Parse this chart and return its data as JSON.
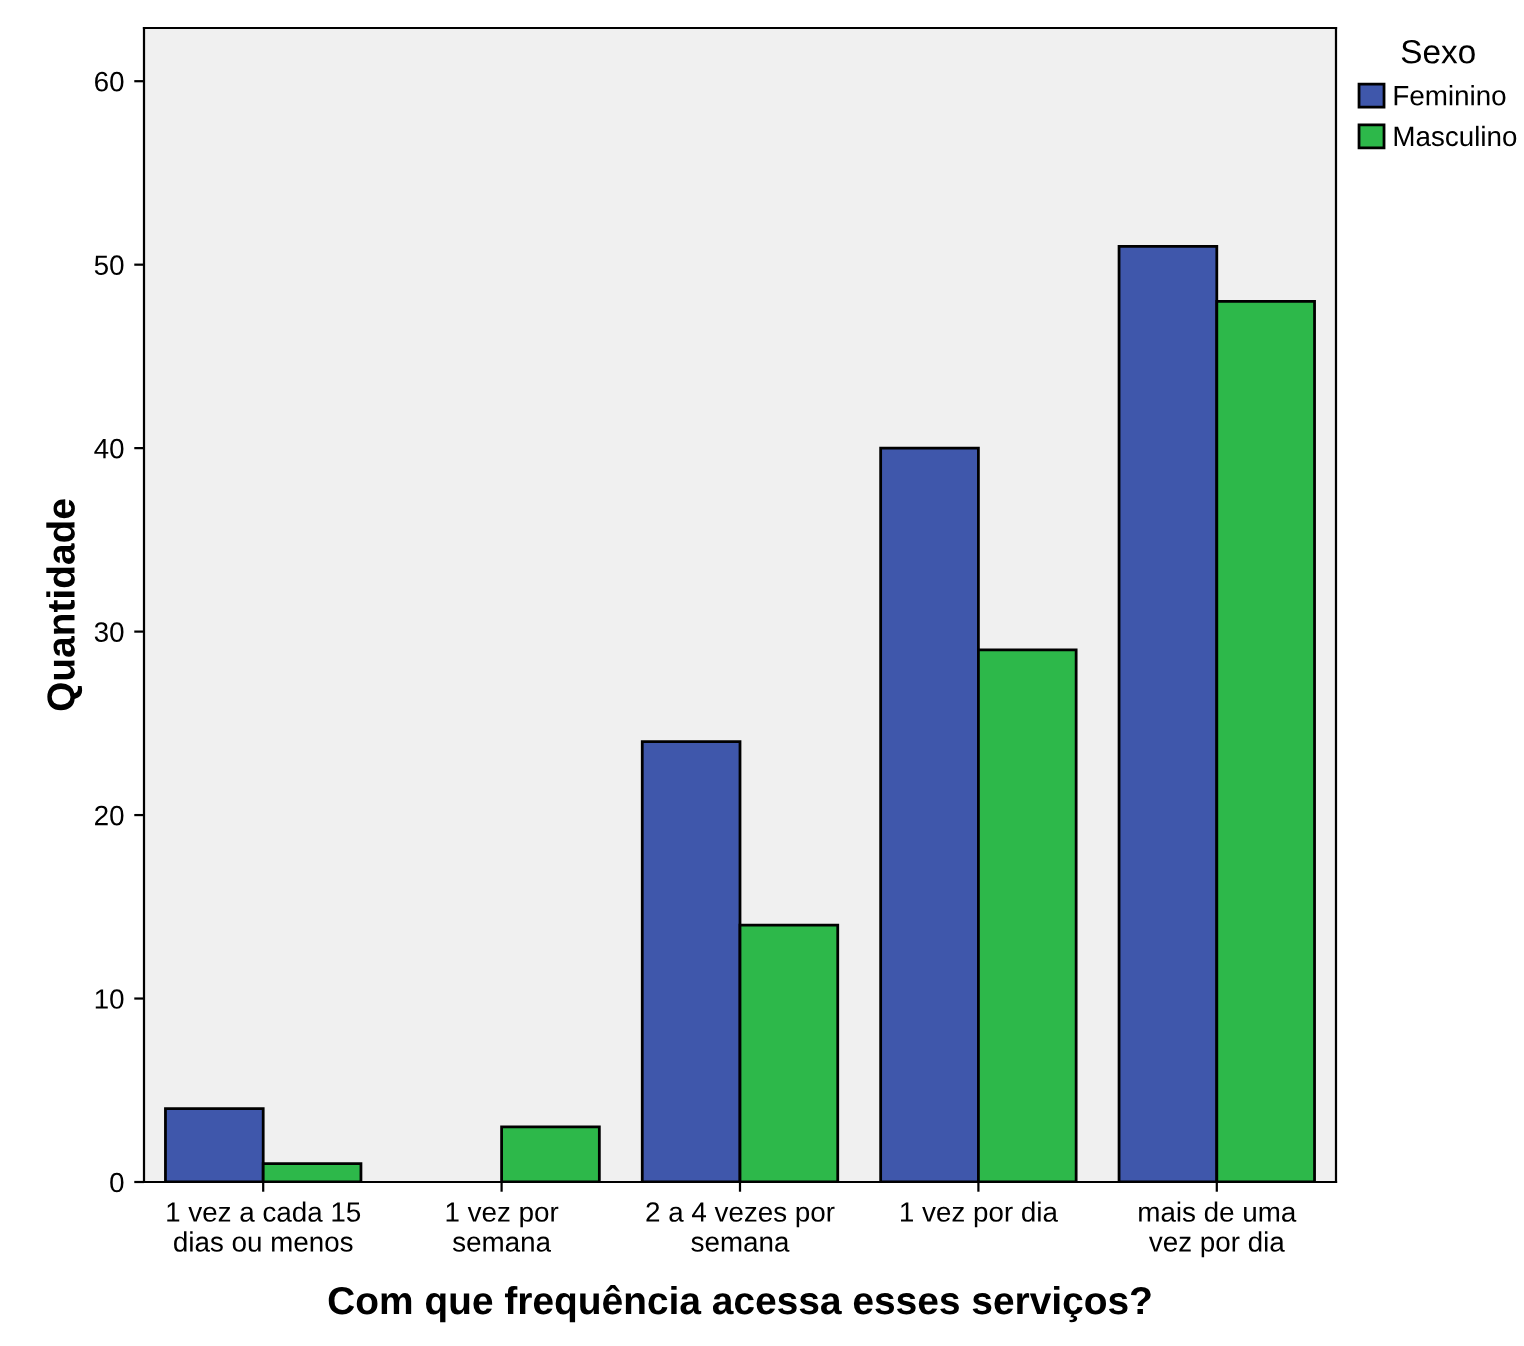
{
  "chart_data": {
    "type": "bar",
    "xlabel": "Com que frequência acessa esses serviços?",
    "ylabel": "Quantidade",
    "legend_title": "Sexo",
    "legend": "top right",
    "categories": [
      "1 vez a cada 15\ndias ou menos",
      "1 vez por\nsemana",
      "2 a 4 vezes por\nsemana",
      "1 vez por dia",
      "mais de uma\nvez por dia"
    ],
    "series": [
      {
        "name": "Feminino",
        "color": "#3f57ab",
        "values": [
          4,
          null,
          24,
          40,
          51
        ]
      },
      {
        "name": "Masculino",
        "color": "#2db84a",
        "values": [
          1,
          3,
          14,
          29,
          48
        ]
      }
    ],
    "ylim": [
      0,
      62.9
    ],
    "yticks": [
      0,
      10,
      20,
      30,
      40,
      50,
      60
    ]
  }
}
